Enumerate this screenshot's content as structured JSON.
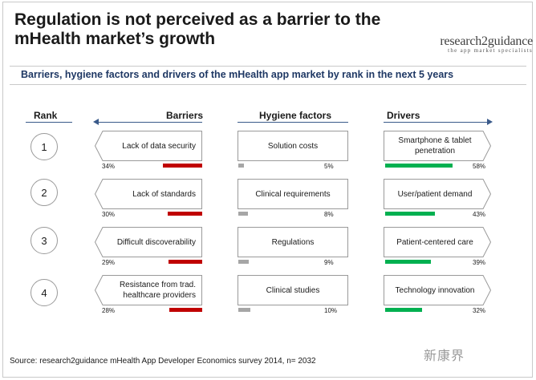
{
  "title": "Regulation is not perceived as a barrier to the mHealth market’s growth",
  "logo": {
    "name": "research2guidance",
    "tagline": "the app market specialists"
  },
  "subtitle": "Barriers, hygiene factors and drivers of the mHealth app market by rank in the next 5 years",
  "headers": {
    "rank": "Rank",
    "barriers": "Barriers",
    "hygiene": "Hygiene factors",
    "drivers": "Drivers"
  },
  "colors": {
    "barrier_bar": "#c00000",
    "hygiene_bar": "#a6a6a6",
    "driver_bar": "#00b050",
    "header_line": "#3a5a8a"
  },
  "rows": [
    {
      "rank": "1",
      "barrier": {
        "label": "Lack of data security",
        "pct_text": "34%",
        "value": 34
      },
      "hygiene": {
        "label": "Solution costs",
        "pct_text": "5%",
        "value": 5
      },
      "driver": {
        "label": "Smartphone & tablet penetration",
        "pct_text": "58%",
        "value": 58
      }
    },
    {
      "rank": "2",
      "barrier": {
        "label": "Lack of standards",
        "pct_text": "30%",
        "value": 30
      },
      "hygiene": {
        "label": "Clinical requirements",
        "pct_text": "8%",
        "value": 8
      },
      "driver": {
        "label": "User/patient demand",
        "pct_text": "43%",
        "value": 43
      }
    },
    {
      "rank": "3",
      "barrier": {
        "label": "Difficult discoverability",
        "pct_text": "29%",
        "value": 29
      },
      "hygiene": {
        "label": "Regulations",
        "pct_text": "9%",
        "value": 9
      },
      "driver": {
        "label": "Patient-centered care",
        "pct_text": "39%",
        "value": 39
      }
    },
    {
      "rank": "4",
      "barrier": {
        "label": "Resistance from trad. healthcare providers",
        "pct_text": "28%",
        "value": 28
      },
      "hygiene": {
        "label": "Clinical studies",
        "pct_text": "10%",
        "value": 10
      },
      "driver": {
        "label": "Technology innovation",
        "pct_text": "32%",
        "value": 32
      }
    }
  ],
  "source": "Source: research2guidance mHealth App Developer Economics survey 2014, n= 2032",
  "watermark": "新康界"
}
